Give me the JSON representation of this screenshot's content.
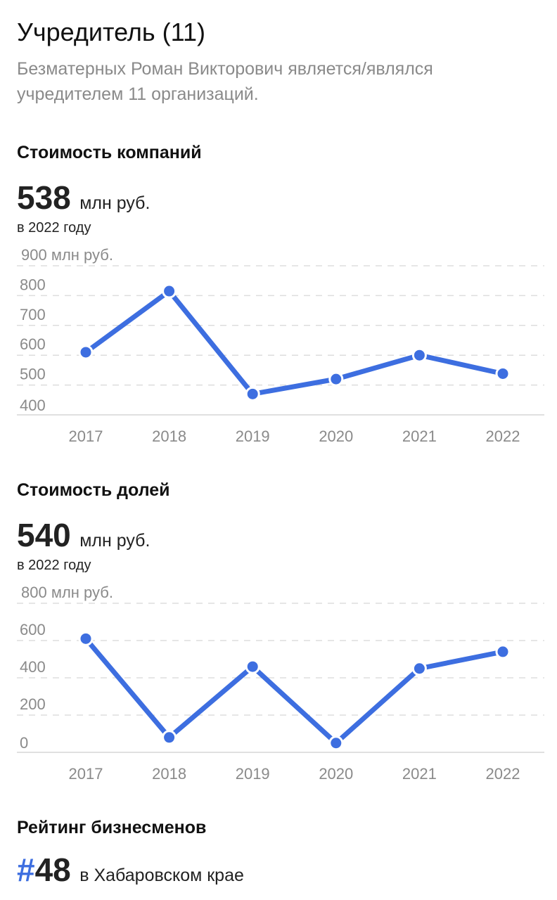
{
  "header": {
    "title": "Учредитель (11)",
    "subtitle": "Безматерных Роман Викторович является/являлся учредителем 11 организаций."
  },
  "companies": {
    "section_title": "Стоимость компаний",
    "value": "538",
    "unit": "млн руб.",
    "year_note": "в 2022 году"
  },
  "shares": {
    "section_title": "Стоимость долей",
    "value": "540",
    "unit": "млн руб.",
    "year_note": "в 2022 году"
  },
  "rating": {
    "section_title": "Рейтинг бизнесменов",
    "hash": "#",
    "rank": "48",
    "region": "в Хабаровском крае"
  },
  "colors": {
    "accent": "#3d6ee0",
    "grid": "#dddddd",
    "muted_text": "#8a8a8a"
  },
  "chart_data": [
    {
      "type": "line",
      "x": [
        "2017",
        "2018",
        "2019",
        "2020",
        "2021",
        "2022"
      ],
      "values": [
        610,
        815,
        470,
        520,
        600,
        538
      ],
      "ylim": [
        400,
        900
      ],
      "yticks": [
        400,
        500,
        600,
        700,
        800,
        900
      ],
      "ytick_labels": [
        "400",
        "500",
        "600",
        "700",
        "800",
        "900 млн руб."
      ],
      "grid": true
    },
    {
      "type": "line",
      "x": [
        "2017",
        "2018",
        "2019",
        "2020",
        "2021",
        "2022"
      ],
      "values": [
        610,
        80,
        460,
        50,
        450,
        540
      ],
      "ylim": [
        0,
        800
      ],
      "yticks": [
        0,
        200,
        400,
        600,
        800
      ],
      "ytick_labels": [
        "0",
        "200",
        "400",
        "600",
        "800 млн руб."
      ],
      "grid": true
    }
  ]
}
